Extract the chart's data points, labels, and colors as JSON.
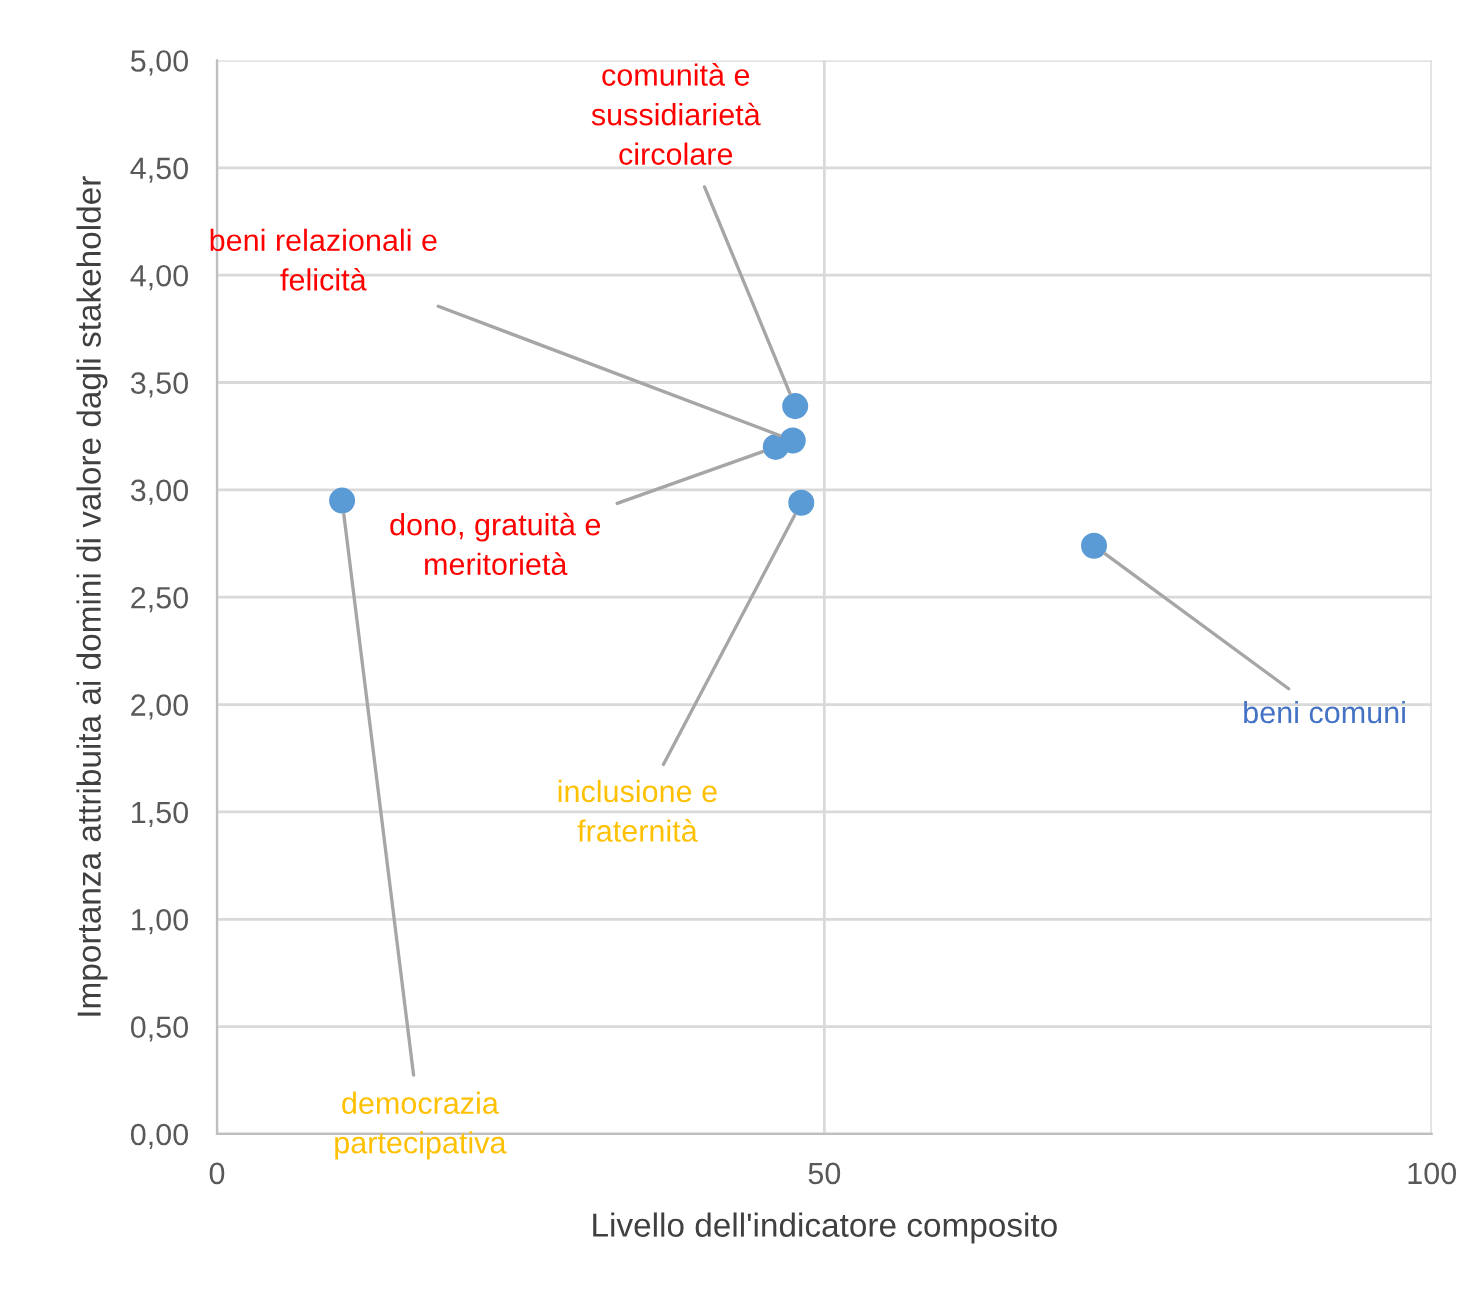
{
  "chart_data": {
    "type": "scatter",
    "xlabel": "Livello dell'indicatore composito",
    "ylabel": "Importanza attribuita ai domini di valore dagli stakeholder",
    "x": [
      47.6,
      47.4,
      46.0,
      48.1,
      10.3,
      72.2
    ],
    "series": [
      {
        "color": "#5b9bd5",
        "values": [
          3.39,
          3.23,
          3.2,
          2.94,
          2.95,
          2.74
        ]
      }
    ],
    "annotations": [
      {
        "text": "comunità e\nsussidiarietà\ncircolare",
        "x": 47.6,
        "y": 3.39
      },
      {
        "text": "beni relazionali e\nfelicità",
        "x": 47.4,
        "y": 3.23
      },
      {
        "text": "dono, gratuità e\nmeritorietà",
        "x": 46.0,
        "y": 3.2
      },
      {
        "text": "inclusione e\nfraternità",
        "x": 48.1,
        "y": 2.94
      },
      {
        "text": "democrazia\npartecipativa",
        "x": 10.3,
        "y": 2.95
      },
      {
        "text": "beni comuni",
        "x": 72.2,
        "y": 2.74
      }
    ],
    "xlim": [
      0,
      100
    ],
    "xticks": [
      0,
      50,
      100
    ],
    "ylim": [
      0,
      5
    ],
    "yticks": [
      {
        "value": 0,
        "label": "0,00"
      },
      {
        "value": 0.5,
        "label": "0,50"
      },
      {
        "value": 1,
        "label": "1,00"
      },
      {
        "value": 1.5,
        "label": "1,50"
      },
      {
        "value": 2,
        "label": "2,00"
      },
      {
        "value": 2.5,
        "label": "2,50"
      },
      {
        "value": 3,
        "label": "3,00"
      },
      {
        "value": 3.5,
        "label": "3,50"
      },
      {
        "value": 4,
        "label": "4,00"
      },
      {
        "value": 4.5,
        "label": "4,50"
      },
      {
        "value": 5,
        "label": "5,00"
      }
    ],
    "grid": true,
    "marker": "circle"
  }
}
